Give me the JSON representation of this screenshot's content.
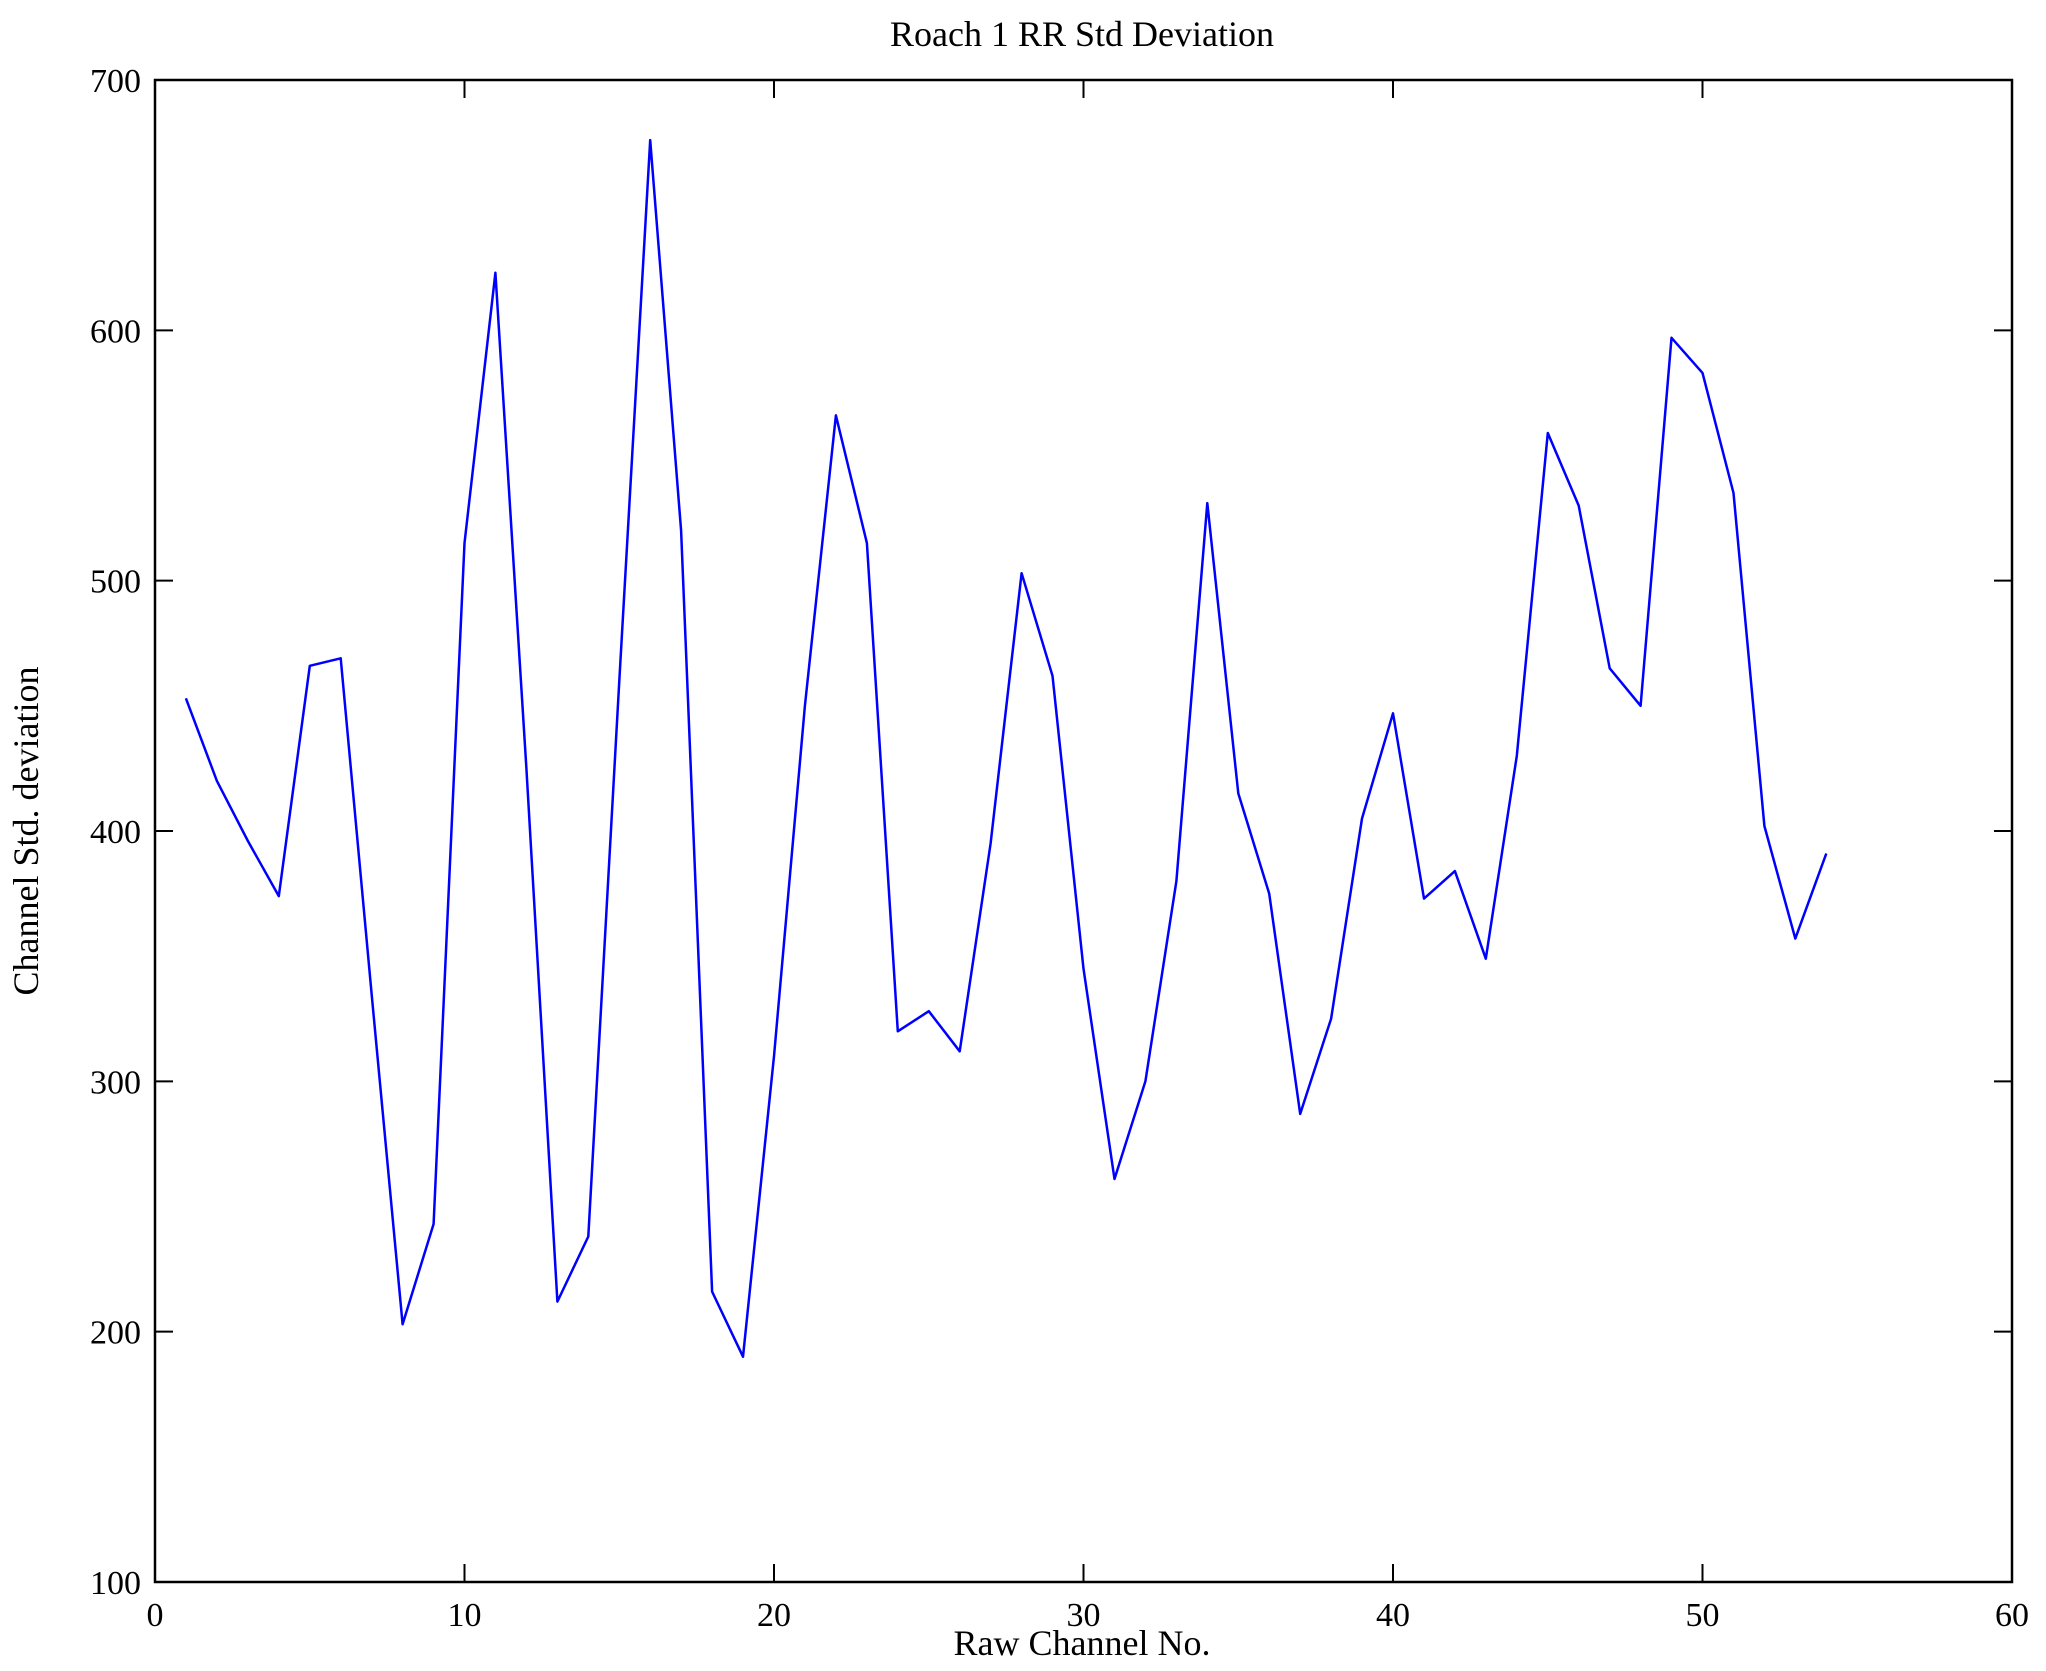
{
  "figure": {
    "background": "#ffffff",
    "axes_color": "#000000",
    "line_color": "#0000ff"
  },
  "chart_data": {
    "type": "line",
    "title": "Roach 1 RR Std Deviation",
    "xlabel": "Raw Channel No.",
    "ylabel": "Channel Std. deviation",
    "xlim": [
      0,
      60
    ],
    "ylim": [
      100,
      700
    ],
    "xticks": [
      0,
      10,
      20,
      30,
      40,
      50,
      60
    ],
    "yticks": [
      100,
      200,
      300,
      400,
      500,
      600,
      700
    ],
    "grid": false,
    "legend": "none",
    "series": [
      {
        "name": "Channel Std. deviation",
        "color": "#0000ff",
        "x": [
          1,
          2,
          3,
          4,
          5,
          6,
          7,
          8,
          9,
          10,
          11,
          12,
          13,
          14,
          15,
          16,
          17,
          18,
          19,
          20,
          21,
          22,
          23,
          24,
          25,
          26,
          27,
          28,
          29,
          30,
          31,
          32,
          33,
          34,
          35,
          36,
          37,
          38,
          39,
          40,
          41,
          42,
          43,
          44,
          45,
          46,
          47,
          48,
          49,
          50,
          51,
          52,
          53,
          54
        ],
        "values": [
          453,
          420,
          396,
          374,
          466,
          469,
          335,
          203,
          243,
          515,
          623,
          425,
          212,
          238,
          460,
          676,
          520,
          216,
          190,
          310,
          450,
          566,
          515,
          320,
          328,
          312,
          395,
          503,
          462,
          345,
          261,
          300,
          380,
          531,
          415,
          375,
          287,
          325,
          405,
          447,
          373,
          384,
          349,
          430,
          559,
          530,
          465,
          450,
          597,
          583,
          535,
          402,
          357,
          391
        ]
      }
    ]
  }
}
